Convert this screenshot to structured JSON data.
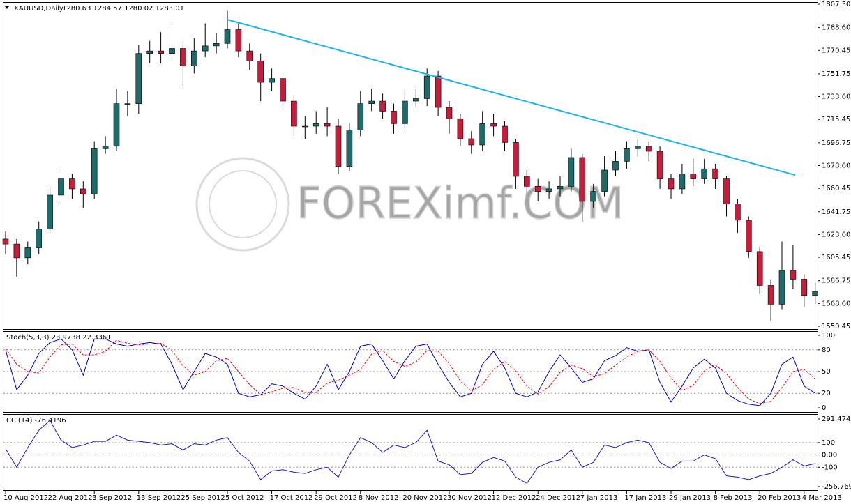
{
  "chart_data": [
    {
      "type": "candlestick",
      "title": "XAUUSD,Daily",
      "subtitle": "1280.63 1284.57 1280.02 1283.01",
      "watermark": "FOREXimf.COM",
      "categories": [
        "10 Aug 2012",
        null,
        null,
        null,
        "22 Aug 2012",
        null,
        null,
        null,
        "3 Sep 2012",
        null,
        null,
        null,
        "13 Sep 2012",
        null,
        null,
        null,
        "25 Sep 2012",
        null,
        null,
        null,
        "5 Oct 2012",
        null,
        null,
        null,
        "17 Oct 2012",
        null,
        null,
        null,
        "29 Oct 2012",
        null,
        null,
        null,
        "8 Nov 2012",
        null,
        null,
        null,
        "20 Nov 2012",
        null,
        null,
        null,
        "30 Nov 2012",
        null,
        null,
        null,
        "12 Dec 2012",
        null,
        null,
        null,
        "24 Dec 2012",
        null,
        null,
        null,
        "7 Jan 2013",
        null,
        null,
        null,
        "17 Jan 2013",
        null,
        null,
        null,
        "29 Jan 2013",
        null,
        null,
        null,
        "8 Feb 2013",
        null,
        null,
        null,
        "20 Feb 2013",
        null,
        null,
        null,
        "4 Mar 2013",
        null
      ],
      "open": [
        1620,
        1616,
        1605,
        1613,
        1628,
        1655,
        1668,
        1660,
        1656,
        1692,
        1694,
        1728,
        1728,
        1768,
        1770,
        1768,
        1772,
        1758,
        1770,
        1774,
        1776,
        1787,
        1770,
        1762,
        1745,
        1748,
        1730,
        1710,
        1710,
        1712,
        1710,
        1678,
        1707,
        1728,
        1730,
        1722,
        1712,
        1730,
        1732,
        1750,
        1725,
        1716,
        1700,
        1695,
        1712,
        1710,
        1697,
        1670,
        1662,
        1658,
        1660,
        1662,
        1685,
        1650,
        1658,
        1675,
        1682,
        1692,
        1694,
        1690,
        1668,
        1660,
        1672,
        1668,
        1676,
        1668,
        1648,
        1635,
        1610,
        1583,
        1568,
        1595,
        1588,
        1575
      ],
      "high": [
        1626,
        1620,
        1618,
        1634,
        1662,
        1676,
        1672,
        1666,
        1698,
        1702,
        1740,
        1738,
        1775,
        1778,
        1785,
        1790,
        1776,
        1780,
        1792,
        1784,
        1802,
        1792,
        1776,
        1768,
        1756,
        1752,
        1735,
        1718,
        1722,
        1725,
        1716,
        1712,
        1738,
        1740,
        1736,
        1728,
        1736,
        1740,
        1756,
        1754,
        1730,
        1720,
        1706,
        1722,
        1720,
        1714,
        1700,
        1675,
        1668,
        1666,
        1670,
        1692,
        1688,
        1664,
        1686,
        1690,
        1698,
        1700,
        1698,
        1694,
        1672,
        1680,
        1684,
        1684,
        1680,
        1670,
        1652,
        1638,
        1614,
        1588,
        1618,
        1615,
        1592,
        1585
      ],
      "low": [
        1608,
        1590,
        1600,
        1608,
        1624,
        1650,
        1652,
        1645,
        1652,
        1688,
        1690,
        1718,
        1720,
        1760,
        1760,
        1762,
        1742,
        1752,
        1765,
        1768,
        1772,
        1765,
        1755,
        1730,
        1738,
        1722,
        1702,
        1700,
        1704,
        1702,
        1672,
        1674,
        1702,
        1722,
        1716,
        1704,
        1708,
        1725,
        1726,
        1718,
        1704,
        1694,
        1688,
        1690,
        1702,
        1690,
        1660,
        1655,
        1650,
        1652,
        1654,
        1658,
        1634,
        1645,
        1654,
        1670,
        1676,
        1686,
        1682,
        1660,
        1652,
        1656,
        1662,
        1664,
        1660,
        1638,
        1625,
        1605,
        1576,
        1555,
        1564,
        1580,
        1566,
        1568
      ],
      "close": [
        1616,
        1605,
        1613,
        1628,
        1655,
        1668,
        1660,
        1656,
        1692,
        1694,
        1728,
        1728,
        1768,
        1770,
        1768,
        1772,
        1758,
        1770,
        1774,
        1776,
        1787,
        1770,
        1762,
        1745,
        1748,
        1730,
        1710,
        1710,
        1712,
        1710,
        1678,
        1707,
        1728,
        1730,
        1722,
        1712,
        1730,
        1732,
        1750,
        1725,
        1716,
        1700,
        1695,
        1712,
        1710,
        1697,
        1670,
        1662,
        1658,
        1660,
        1662,
        1685,
        1650,
        1658,
        1675,
        1682,
        1692,
        1694,
        1690,
        1668,
        1660,
        1672,
        1668,
        1676,
        1668,
        1648,
        1635,
        1610,
        1583,
        1568,
        1595,
        1588,
        1575,
        1578
      ],
      "up_color": "#1d6b6b",
      "down_color": "#c41e3a",
      "trendline": {
        "x": [
          20,
          71.2
        ],
        "y": [
          1795,
          1671
        ],
        "color": "#1eb4e6"
      },
      "ylim": [
        1550.45,
        1807.3
      ],
      "yticks": [
        {
          "value": 1807.3,
          "label": "1807.30"
        },
        {
          "value": 1788.6,
          "label": "1788.60"
        },
        1770.45,
        1751.75,
        {
          "value": 1733.6,
          "label": "1733.60"
        },
        1715.45,
        1696.75,
        {
          "value": 1678.6,
          "label": "1678.60"
        },
        1660.45,
        1641.75,
        {
          "value": 1623.6,
          "label": "1623.60"
        },
        1605.45,
        1586.75,
        {
          "value": 1568.6,
          "label": "1568.60"
        },
        1550.45
      ],
      "grid": false
    },
    {
      "type": "line",
      "title": "Stoch(5,3,3) 23.9738 22.3361",
      "ylim": [
        0,
        100
      ],
      "yticks": [
        100,
        80,
        50,
        20,
        0
      ],
      "grid": true,
      "series": [
        {
          "color": "#0000cc",
          "dash": false,
          "values": [
            80,
            25,
            45,
            75,
            90,
            95,
            80,
            45,
            95,
            95,
            88,
            85,
            88,
            90,
            88,
            60,
            25,
            50,
            75,
            70,
            60,
            20,
            15,
            18,
            33,
            30,
            20,
            12,
            30,
            60,
            25,
            50,
            85,
            88,
            65,
            40,
            65,
            85,
            88,
            60,
            35,
            15,
            20,
            60,
            78,
            55,
            20,
            15,
            22,
            50,
            73,
            55,
            35,
            40,
            65,
            72,
            83,
            78,
            80,
            35,
            8,
            30,
            55,
            67,
            55,
            20,
            10,
            5,
            3,
            20,
            60,
            70,
            30,
            20
          ]
        },
        {
          "color": "#ff0000",
          "dash": true,
          "values": [
            82,
            60,
            50,
            48,
            70,
            87,
            88,
            73,
            73,
            78,
            93,
            89,
            87,
            88,
            89,
            79,
            58,
            45,
            50,
            65,
            68,
            50,
            32,
            18,
            22,
            27,
            28,
            21,
            21,
            34,
            38,
            45,
            53,
            74,
            79,
            64,
            57,
            63,
            79,
            78,
            61,
            37,
            23,
            32,
            53,
            64,
            51,
            30,
            19,
            29,
            49,
            59,
            54,
            43,
            47,
            59,
            70,
            78,
            80,
            64,
            41,
            24,
            31,
            51,
            59,
            47,
            28,
            12,
            6,
            9,
            28,
            50,
            53,
            40
          ]
        }
      ]
    },
    {
      "type": "line",
      "title": "CCI(14) -76.4196",
      "ylim": [
        -256.769,
        291.4746
      ],
      "yticks": [
        291.4746,
        100,
        {
          "value": 0,
          "label": "0.00"
        },
        -100,
        -256.769
      ],
      "grid": true,
      "series": [
        {
          "color": "#1a1acc",
          "dash": false,
          "values": [
            50,
            -100,
            60,
            200,
            280,
            120,
            60,
            80,
            110,
            110,
            160,
            120,
            110,
            100,
            80,
            90,
            40,
            90,
            80,
            120,
            140,
            20,
            -50,
            -200,
            -130,
            -120,
            -140,
            -150,
            -120,
            -100,
            -180,
            0,
            140,
            100,
            20,
            80,
            60,
            100,
            200,
            -50,
            -80,
            -160,
            -150,
            -60,
            -20,
            -50,
            -180,
            -230,
            -100,
            -60,
            -40,
            40,
            -100,
            -60,
            80,
            60,
            100,
            120,
            100,
            -60,
            -110,
            -50,
            -50,
            0,
            -30,
            -170,
            -180,
            -200,
            -170,
            -150,
            -100,
            -40,
            -90,
            -70
          ]
        }
      ]
    }
  ]
}
